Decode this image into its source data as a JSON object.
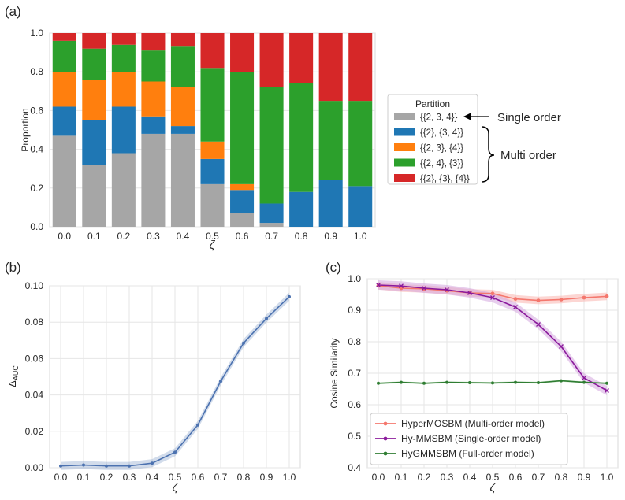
{
  "panel_labels": [
    "(a)",
    "(b)",
    "(c)"
  ],
  "chart_data": [
    {
      "type": "bar",
      "stacked": true,
      "panel": "(a)",
      "xlabel": "ζ",
      "ylabel": "Proportion",
      "ylim": [
        0,
        1
      ],
      "yticks": [
        "0.0",
        "0.2",
        "0.4",
        "0.6",
        "0.8",
        "1.0"
      ],
      "grid": true,
      "categories": [
        "0.0",
        "0.1",
        "0.2",
        "0.3",
        "0.4",
        "0.5",
        "0.6",
        "0.7",
        "0.8",
        "0.9",
        "1.0"
      ],
      "series": [
        {
          "name": "{{2, 3, 4}}",
          "color": "#a6a6a6",
          "values": [
            0.47,
            0.32,
            0.38,
            0.48,
            0.48,
            0.22,
            0.07,
            0.02,
            0.0,
            0.0,
            0.0
          ]
        },
        {
          "name": "{{2}, {3, 4}}",
          "color": "#1f77b4",
          "values": [
            0.15,
            0.23,
            0.24,
            0.09,
            0.04,
            0.13,
            0.12,
            0.1,
            0.18,
            0.24,
            0.21
          ]
        },
        {
          "name": "{{2, 3}, {4}}",
          "color": "#ff7f0e",
          "values": [
            0.18,
            0.21,
            0.18,
            0.18,
            0.2,
            0.09,
            0.03,
            0.0,
            0.0,
            0.0,
            0.0
          ]
        },
        {
          "name": "{{2, 4}, {3}}",
          "color": "#2ca02c",
          "values": [
            0.16,
            0.16,
            0.14,
            0.16,
            0.21,
            0.38,
            0.58,
            0.6,
            0.56,
            0.41,
            0.44
          ]
        },
        {
          "name": "{{2}, {3}, {4}}",
          "color": "#d62728",
          "values": [
            0.04,
            0.08,
            0.06,
            0.09,
            0.07,
            0.18,
            0.2,
            0.28,
            0.26,
            0.35,
            0.35
          ]
        }
      ],
      "legend": {
        "title": "Partition",
        "placement": "right",
        "annotations": {
          "single": "Single order",
          "multi": "Multi order"
        }
      }
    },
    {
      "type": "line",
      "panel": "(b)",
      "xlabel": "ζ",
      "ylabel": "Δ",
      "ylabel_sub": "AUC",
      "ylim": [
        0,
        0.1
      ],
      "yticks": [
        "0.00",
        "0.02",
        "0.04",
        "0.06",
        "0.08",
        "0.10"
      ],
      "xticks": [
        "0.0",
        "0.1",
        "0.2",
        "0.3",
        "0.4",
        "0.5",
        "0.6",
        "0.7",
        "0.8",
        "0.9",
        "1.0"
      ],
      "grid": true,
      "x": [
        0.0,
        0.1,
        0.2,
        0.3,
        0.4,
        0.5,
        0.6,
        0.7,
        0.8,
        0.9,
        1.0
      ],
      "series": [
        {
          "color": "#4c72b0",
          "values": [
            0.001,
            0.0015,
            0.001,
            0.001,
            0.0025,
            0.0085,
            0.0235,
            0.0475,
            0.0685,
            0.082,
            0.094
          ],
          "band": 0.0022
        }
      ]
    },
    {
      "type": "line",
      "panel": "(c)",
      "xlabel": "ζ",
      "ylabel": "Cosine Similarity",
      "ylim": [
        0.4,
        1.0
      ],
      "yticks": [
        "0.4",
        "0.5",
        "0.6",
        "0.7",
        "0.8",
        "0.9",
        "1.0"
      ],
      "xticks": [
        "0.0",
        "0.1",
        "0.2",
        "0.3",
        "0.4",
        "0.5",
        "0.6",
        "0.7",
        "0.8",
        "0.9",
        "1.0"
      ],
      "grid": true,
      "x": [
        0.0,
        0.1,
        0.2,
        0.3,
        0.4,
        0.5,
        0.6,
        0.7,
        0.8,
        0.9,
        1.0
      ],
      "legend_placement": "lower-left",
      "series": [
        {
          "name": "HyperMOSBM (Multi-order model)",
          "color": "#f4776d",
          "band_color": "#f9b5ae",
          "values": [
            0.978,
            0.97,
            0.968,
            0.962,
            0.955,
            0.953,
            0.936,
            0.931,
            0.934,
            0.94,
            0.944
          ],
          "band": 0.012
        },
        {
          "name": "Hy-MMSBM (Single-order model)",
          "color": "#8b1b9c",
          "band_color": "#d3a6df",
          "values": [
            0.98,
            0.977,
            0.97,
            0.965,
            0.955,
            0.94,
            0.91,
            0.855,
            0.785,
            0.685,
            0.645
          ],
          "band": 0.015
        },
        {
          "name": "HyGMMSBM (Full-order model)",
          "color": "#2f7d32",
          "band_color": "#a8d1a6",
          "values": [
            0.668,
            0.671,
            0.668,
            0.671,
            0.67,
            0.669,
            0.671,
            0.67,
            0.676,
            0.671,
            0.668
          ],
          "band": 0.003
        }
      ]
    }
  ]
}
